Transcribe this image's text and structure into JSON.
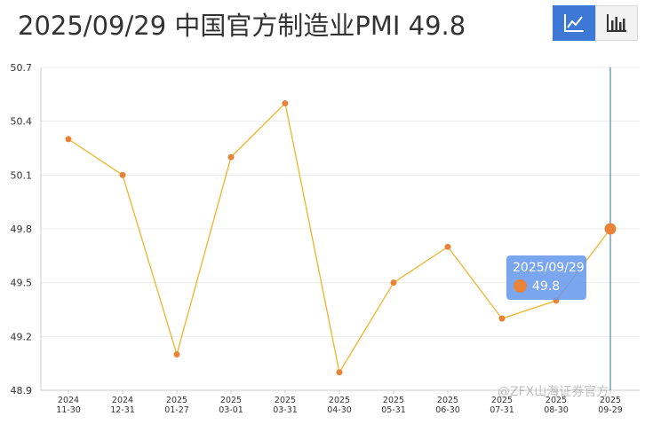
{
  "title": "2025/09/29   中国官方制造业PMI 49.8",
  "toolbar": {
    "line_icon": "line-chart-icon",
    "bar_icon": "bar-chart-icon",
    "active": "line"
  },
  "colors": {
    "line": "#f0b429",
    "point": "#e8833a",
    "active_button": "#3d78d6",
    "cursor_line": "#2a6f9e",
    "tooltip_bg": "#6396ec"
  },
  "tooltip": {
    "date": "2025/09/29",
    "value": "49.8"
  },
  "watermark": "@ZFX山海证券官方",
  "chart_data": {
    "type": "line",
    "title": "中国官方制造业PMI",
    "x": [
      "2024\n11-30",
      "2024\n12-31",
      "2025\n01-27",
      "2025\n03-01",
      "2025\n03-31",
      "2025\n04-30",
      "2025\n05-31",
      "2025\n06-30",
      "2025\n07-31",
      "2025\n08-30",
      "2025\n09-29"
    ],
    "series": [
      {
        "values": [
          50.3,
          50.1,
          49.1,
          50.2,
          50.5,
          49.0,
          49.5,
          49.7,
          49.3,
          49.4,
          49.8
        ]
      }
    ],
    "ylim": [
      48.9,
      50.7
    ],
    "yticks": [
      "50.7",
      "50.4",
      "50.1",
      "49.8",
      "49.5",
      "49.2",
      "48.9"
    ],
    "grid": true,
    "highlighted_index": 10
  }
}
